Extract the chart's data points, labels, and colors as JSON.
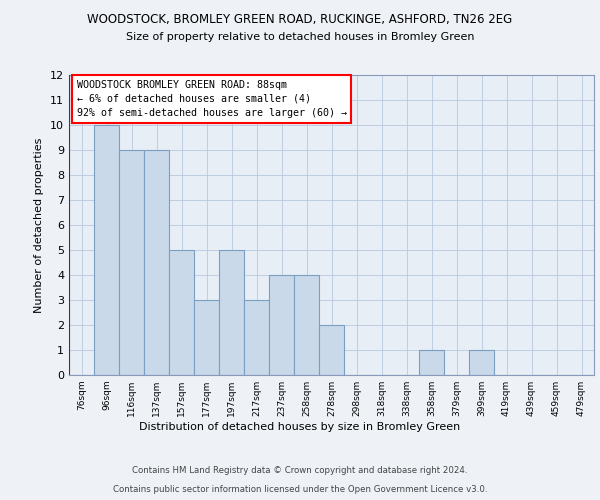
{
  "title1": "WOODSTOCK, BROMLEY GREEN ROAD, RUCKINGE, ASHFORD, TN26 2EG",
  "title2": "Size of property relative to detached houses in Bromley Green",
  "xlabel": "Distribution of detached houses by size in Bromley Green",
  "ylabel": "Number of detached properties",
  "categories": [
    "76sqm",
    "96sqm",
    "116sqm",
    "137sqm",
    "157sqm",
    "177sqm",
    "197sqm",
    "217sqm",
    "237sqm",
    "258sqm",
    "278sqm",
    "298sqm",
    "318sqm",
    "338sqm",
    "358sqm",
    "379sqm",
    "399sqm",
    "419sqm",
    "439sqm",
    "459sqm",
    "479sqm"
  ],
  "values": [
    0,
    10,
    9,
    9,
    5,
    3,
    5,
    3,
    4,
    4,
    2,
    0,
    0,
    0,
    1,
    0,
    1,
    0,
    0,
    0,
    0
  ],
  "bar_color": "#c9d9ea",
  "bar_edge_color": "#7a9fc0",
  "red_line_x": 0,
  "ylim": [
    0,
    12
  ],
  "yticks": [
    0,
    1,
    2,
    3,
    4,
    5,
    6,
    7,
    8,
    9,
    10,
    11,
    12
  ],
  "annotation_title": "WOODSTOCK BROMLEY GREEN ROAD: 88sqm",
  "annotation_line1": "← 6% of detached houses are smaller (4)",
  "annotation_line2": "92% of semi-detached houses are larger (60) →",
  "footer1": "Contains HM Land Registry data © Crown copyright and database right 2024.",
  "footer2": "Contains public sector information licensed under the Open Government Licence v3.0.",
  "bg_color": "#eef2f7",
  "plot_bg_color": "#e8eef5",
  "grid_color": "#b8c8dc",
  "spine_color": "#8899bb"
}
